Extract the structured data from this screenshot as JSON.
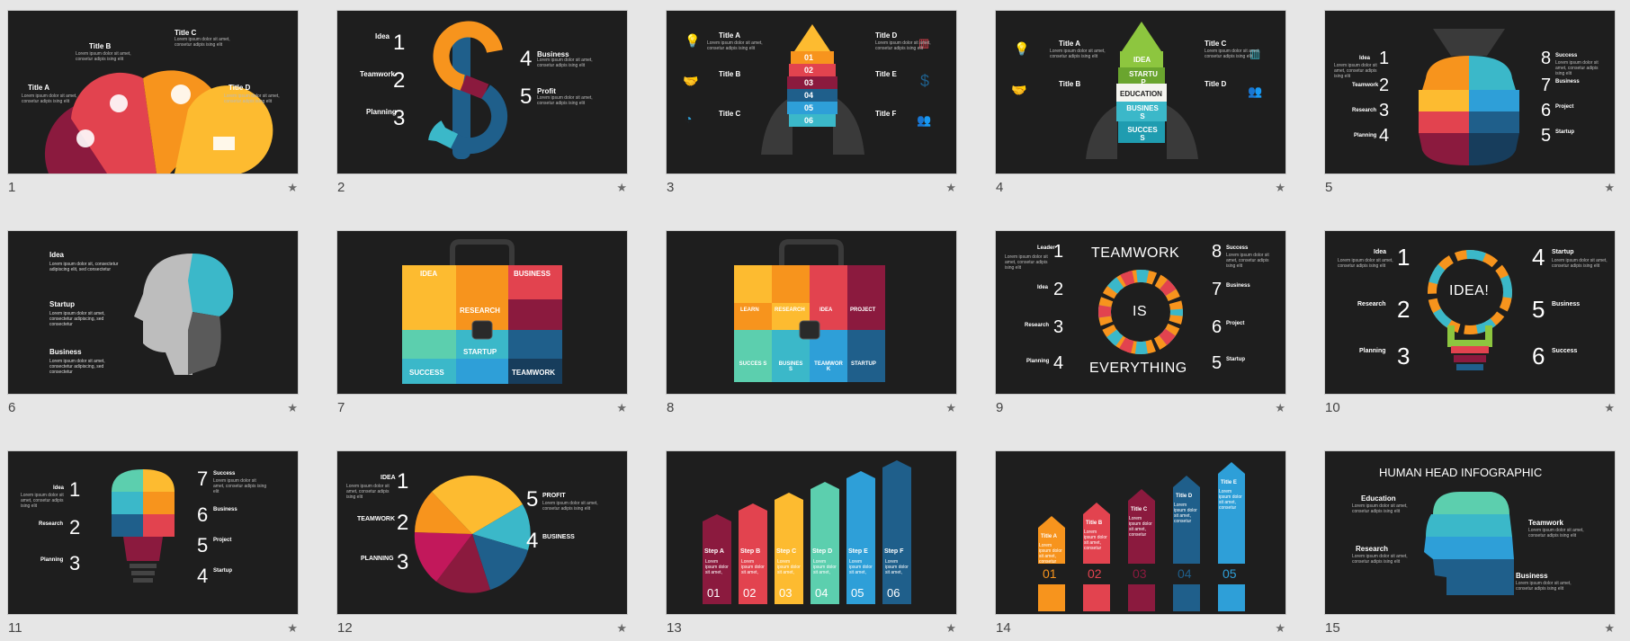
{
  "slides": [
    {
      "number": "1",
      "titles": [
        "Title A",
        "Title B",
        "Title C",
        "Title D"
      ],
      "text": "Lorem ipsum dolor sit amet, consetur adipis ising elit"
    },
    {
      "number": "2",
      "labels": [
        "Idea",
        "Teamwork",
        "Planning",
        "Business",
        "Profit"
      ],
      "nums": [
        "1",
        "2",
        "3",
        "4",
        "5"
      ],
      "text": "Lorem ipsum dolor sit amet, consetur adipis ising elit"
    },
    {
      "number": "3",
      "titles": [
        "Title A",
        "Title B",
        "Title C",
        "Title D",
        "Title E",
        "Title F"
      ],
      "steps": [
        "01",
        "02",
        "03",
        "04",
        "05",
        "06"
      ],
      "text": "Lorem ipsum dolor sit amet, consetur adipis ising elit"
    },
    {
      "number": "4",
      "titles": [
        "Title A",
        "Title B",
        "Title C",
        "Title D"
      ],
      "stages": [
        "IDEA",
        "STARTU P",
        "EDUCATION",
        "BUSINES S",
        "SUCCES S"
      ],
      "text": "Lorem ipsum dolor sit amet, consetur adipis ising elit"
    },
    {
      "number": "5",
      "labels": [
        "Idea",
        "Teamwork",
        "Research",
        "Planning",
        "Success",
        "Business",
        "Project",
        "Startup"
      ],
      "nums": [
        "1",
        "2",
        "3",
        "4",
        "8",
        "7",
        "6",
        "5"
      ],
      "text": "Lorem ipsum dolor sit amet, consetur adipis ising elit"
    },
    {
      "number": "6",
      "labels": [
        "Idea",
        "Startup",
        "Business"
      ],
      "texts": [
        "Lorem ipsum dolor sit, consectetur adipiscing elit, sed consectetur",
        "Lorem ipsum dolor sit amet, consectetur adipiscing, sed consectetur",
        "Lorem ipsum dolor sit amet, consectetur adipiscing, sed consectetur"
      ]
    },
    {
      "number": "7",
      "cells": [
        "IDEA",
        "BUSINESS",
        "RESEARCH",
        "STARTUP",
        "SUCCESS",
        "TEAMWORK"
      ]
    },
    {
      "number": "8",
      "cells": [
        "LEARN",
        "RESEARCH",
        "IDEA",
        "PROJECT",
        "SUCCES S",
        "BUSINES S",
        "TEAMWOR K",
        "STARTUP"
      ]
    },
    {
      "number": "9",
      "top": "TEAMWORK",
      "middle": "IS",
      "bottom": "EVERYTHING",
      "labels": [
        "Leader",
        "Idea",
        "Research",
        "Planning",
        "Success",
        "Business",
        "Project",
        "Startup"
      ],
      "nums": [
        "1",
        "2",
        "3",
        "4",
        "8",
        "7",
        "6",
        "5"
      ],
      "text": "Lorem ipsum dolor sit amet, consetur adipis ising elit"
    },
    {
      "number": "10",
      "center": "IDEA!",
      "labels": [
        "Idea",
        "Research",
        "Planning",
        "Startup",
        "Business",
        "Success"
      ],
      "nums": [
        "1",
        "2",
        "3",
        "4",
        "5",
        "6"
      ],
      "text": "Lorem ipsum dolor sit amet, consetur adipis ising elit"
    },
    {
      "number": "11",
      "labels": [
        "Idea",
        "Research",
        "Planning",
        "Success",
        "Business",
        "Project",
        "Startup"
      ],
      "nums": [
        "1",
        "2",
        "3",
        "7",
        "6",
        "5",
        "4"
      ],
      "text": "Lorem ipsum dolor sit amet, consetur adipis ising elit"
    },
    {
      "number": "12",
      "labels": [
        "IDEA",
        "TEAMWORK",
        "PLANNING",
        "PROFIT",
        "BUSINESS"
      ],
      "nums": [
        "1",
        "2",
        "3",
        "5",
        "4"
      ],
      "text": "Lorem ipsum dolor sit amet, consetur adipis ising elit"
    },
    {
      "number": "13",
      "steps": [
        "Step A",
        "Step B",
        "Step C",
        "Step D",
        "Step E",
        "Step F"
      ],
      "nums": [
        "01",
        "02",
        "03",
        "04",
        "05",
        "06"
      ],
      "text": "Lorem ipsum dolor sit amet,"
    },
    {
      "number": "14",
      "titles": [
        "Title A",
        "Title B",
        "Title C",
        "Title D",
        "Title E"
      ],
      "nums": [
        "01",
        "02",
        "03",
        "04",
        "05"
      ],
      "text": "Lorem ipsum dolor sit amet, consetur"
    },
    {
      "number": "15",
      "title": "HUMAN HEAD INFOGRAPHIC",
      "labels": [
        "Education",
        "Teamwork",
        "Research",
        "Business"
      ],
      "text": "Lorem ipsum dolor sit amet, consetur adipis ising elit"
    }
  ],
  "star_glyph": "★",
  "palette": {
    "orange": "#f7941d",
    "red": "#e2434f",
    "maroon": "#8b1a3e",
    "yellow": "#fdbb30",
    "teal": "#3bb8c9",
    "blue": "#1f5f8b",
    "sky": "#2e9fd8",
    "mint": "#5ccfae",
    "green": "#8dc63f"
  }
}
